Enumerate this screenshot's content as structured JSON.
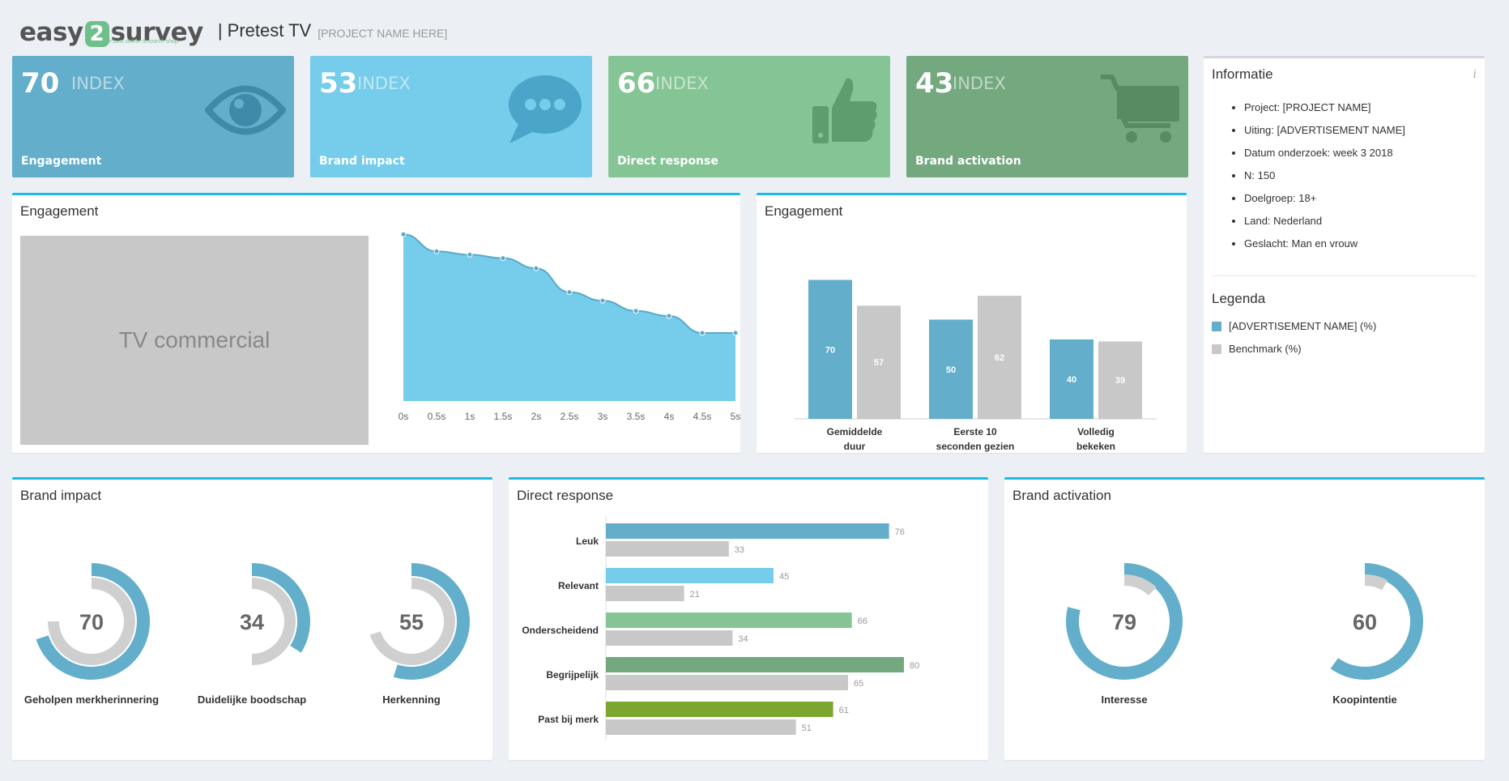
{
  "header": {
    "logo_easy": "easy",
    "logo_two": "2",
    "logo_survey": "survey",
    "logo_tagline": "the best online research shop",
    "title": "| Pretest TV",
    "project_placeholder": "[PROJECT NAME HERE]"
  },
  "tiles": [
    {
      "value": "70",
      "index_label": "INDEX",
      "label": "Engagement",
      "icon": "eye-icon",
      "color": "#62aecb"
    },
    {
      "value": "53",
      "index_label": "INDEX",
      "label": "Brand impact",
      "icon": "speech-bubble-icon",
      "color": "#75cceb"
    },
    {
      "value": "66",
      "index_label": "INDEX",
      "label": "Direct response",
      "icon": "thumbs-up-icon",
      "color": "#85c595"
    },
    {
      "value": "43",
      "index_label": "INDEX",
      "label": "Brand activation",
      "icon": "shopping-cart-icon",
      "color": "#74a87f"
    }
  ],
  "info": {
    "title": "Informatie",
    "info_icon": "i",
    "items": [
      "Project: [PROJECT NAME]",
      "Uiting: [ADVERTISEMENT NAME]",
      "Datum onderzoek: week 3 2018",
      "N: 150",
      "Doelgroep: 18+",
      "Land: Nederland",
      "Geslacht: Man en vrouw"
    ],
    "legend_title": "Legenda",
    "legend": [
      {
        "label": "[ADVERTISEMENT NAME] (%)",
        "color": "#62aecb"
      },
      {
        "label": "Benchmark (%)",
        "color": "#c8c8c8"
      }
    ]
  },
  "engagement_area": {
    "title": "Engagement",
    "video_label": "TV commercial"
  },
  "engagement_bars": {
    "title": "Engagement"
  },
  "brand_impact": {
    "title": "Brand impact"
  },
  "direct_response": {
    "title": "Direct response"
  },
  "brand_activation": {
    "title": "Brand activation"
  },
  "chart_data": [
    {
      "type": "area",
      "title": "Engagement",
      "x": [
        "0s",
        "0.5s",
        "1s",
        "1.5s",
        "2s",
        "2.5s",
        "3s",
        "3.5s",
        "4s",
        "4.5s",
        "5s"
      ],
      "values": [
        98,
        88,
        86,
        84,
        78,
        64,
        59,
        53,
        50,
        40,
        40
      ],
      "ylim": [
        0,
        100
      ],
      "color": "#75cceb"
    },
    {
      "type": "bar",
      "title": "Engagement",
      "categories": [
        "Gemiddelde duur",
        "Eerste 10 seconden gezien",
        "Volledig bekeken"
      ],
      "category_lines": [
        [
          "Gemiddelde",
          "duur"
        ],
        [
          "Eerste 10",
          "seconden gezien"
        ],
        [
          "Volledig",
          "bekeken"
        ]
      ],
      "series": [
        {
          "name": "[ADVERTISEMENT NAME] (%)",
          "values": [
            70,
            50,
            40
          ],
          "color": "#62aecb"
        },
        {
          "name": "Benchmark (%)",
          "values": [
            57,
            62,
            39
          ],
          "color": "#c8c8c8"
        }
      ],
      "ylim": [
        0,
        80
      ]
    },
    {
      "type": "pie",
      "title": "Brand impact",
      "gauges": [
        {
          "label": "Geholpen merkherinnering",
          "value": 70,
          "benchmark": 75
        },
        {
          "label": "Duidelijke boodschap",
          "value": 34,
          "benchmark": 50
        },
        {
          "label": "Herkenning",
          "value": 55,
          "benchmark": 70
        }
      ]
    },
    {
      "type": "bar",
      "title": "Direct response",
      "orientation": "horizontal",
      "categories": [
        "Leuk",
        "Relevant",
        "Onderscheidend",
        "Begrijpelijk",
        "Past bij merk"
      ],
      "series": [
        {
          "name": "[ADVERTISEMENT NAME] (%)",
          "values": [
            76,
            45,
            66,
            80,
            61
          ],
          "colors": [
            "#62aecb",
            "#75cceb",
            "#85c595",
            "#74a87f",
            "#7ca62f"
          ]
        },
        {
          "name": "Benchmark (%)",
          "values": [
            33,
            21,
            34,
            65,
            51
          ],
          "color": "#c8c8c8"
        }
      ],
      "xlim": [
        0,
        100
      ]
    },
    {
      "type": "pie",
      "title": "Brand activation",
      "gauges": [
        {
          "label": "Interesse",
          "value": 79,
          "benchmark": 12
        },
        {
          "label": "Koopintentie",
          "value": 60,
          "benchmark": 8
        }
      ]
    }
  ]
}
